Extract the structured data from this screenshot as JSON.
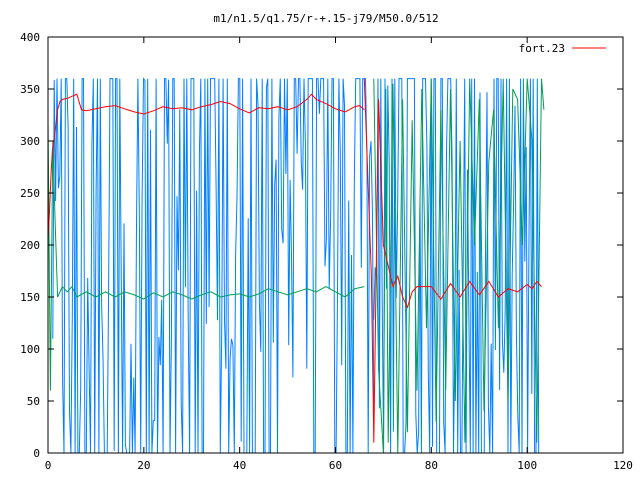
{
  "chart_data": {
    "type": "line",
    "title": "m1/n1.5/q1.75/r-+.15-j79/M50.0/512",
    "xlabel": "",
    "ylabel": "",
    "xlim": [
      0,
      120
    ],
    "ylim": [
      0,
      400
    ],
    "xticks": [
      0,
      20,
      40,
      60,
      80,
      100,
      120
    ],
    "yticks": [
      0,
      50,
      100,
      150,
      200,
      250,
      300,
      350,
      400
    ],
    "grid": false,
    "legend_position": "top-right",
    "series": [
      {
        "name": "fort.23",
        "color": "#ff0000",
        "points": [
          [
            0,
            205
          ],
          [
            0.3,
            230
          ],
          [
            0.6,
            265
          ],
          [
            0.9,
            290
          ],
          [
            1.2,
            300
          ],
          [
            1.5,
            310
          ],
          [
            2,
            330
          ],
          [
            2.5,
            338
          ],
          [
            3,
            340
          ],
          [
            4,
            341
          ],
          [
            5,
            343
          ],
          [
            6,
            345
          ],
          [
            7,
            330
          ],
          [
            8,
            329
          ],
          [
            10,
            331
          ],
          [
            12,
            333
          ],
          [
            14,
            334
          ],
          [
            16,
            331
          ],
          [
            18,
            328
          ],
          [
            20,
            326
          ],
          [
            22,
            329
          ],
          [
            24,
            333
          ],
          [
            26,
            331
          ],
          [
            28,
            332
          ],
          [
            30,
            330
          ],
          [
            32,
            333
          ],
          [
            34,
            335
          ],
          [
            36,
            338
          ],
          [
            38,
            336
          ],
          [
            40,
            331
          ],
          [
            42,
            327
          ],
          [
            44,
            332
          ],
          [
            46,
            331
          ],
          [
            48,
            333
          ],
          [
            50,
            330
          ],
          [
            52,
            333
          ],
          [
            54,
            340
          ],
          [
            55,
            345
          ],
          [
            56,
            340
          ],
          [
            58,
            336
          ],
          [
            60,
            331
          ],
          [
            62,
            328
          ],
          [
            64,
            333
          ],
          [
            65,
            334
          ],
          [
            66,
            330
          ]
        ]
      },
      {
        "name": "",
        "color": "#ff0000",
        "points": [
          [
            66,
            360
          ],
          [
            67.5,
            170
          ],
          [
            68,
            10
          ],
          [
            69,
            340
          ],
          [
            70,
            200
          ],
          [
            71,
            180
          ],
          [
            72,
            160
          ],
          [
            73,
            170
          ],
          [
            74,
            150
          ],
          [
            75,
            140
          ],
          [
            76,
            155
          ],
          [
            77,
            160
          ],
          [
            78,
            160
          ],
          [
            80,
            160
          ],
          [
            82,
            148
          ],
          [
            84,
            163
          ],
          [
            86,
            150
          ],
          [
            88,
            165
          ],
          [
            90,
            152
          ],
          [
            92,
            165
          ],
          [
            94,
            150
          ],
          [
            96,
            158
          ],
          [
            98,
            155
          ],
          [
            100,
            162
          ],
          [
            101,
            158
          ],
          [
            102,
            165
          ],
          [
            103,
            160
          ]
        ]
      },
      {
        "name": "",
        "color": "#00a050",
        "points": [
          [
            0,
            320
          ],
          [
            0.5,
            60
          ],
          [
            1,
            300
          ],
          [
            1.5,
            220
          ],
          [
            2,
            150
          ],
          [
            3,
            160
          ],
          [
            4,
            155
          ],
          [
            5,
            160
          ],
          [
            6,
            150
          ],
          [
            8,
            155
          ],
          [
            10,
            150
          ],
          [
            12,
            155
          ],
          [
            14,
            150
          ],
          [
            16,
            155
          ],
          [
            18,
            152
          ],
          [
            20,
            148
          ],
          [
            22,
            154
          ],
          [
            24,
            150
          ],
          [
            26,
            155
          ],
          [
            28,
            152
          ],
          [
            30,
            148
          ],
          [
            32,
            152
          ],
          [
            34,
            155
          ],
          [
            36,
            150
          ],
          [
            38,
            152
          ],
          [
            40,
            153
          ],
          [
            42,
            150
          ],
          [
            44,
            153
          ],
          [
            46,
            158
          ],
          [
            48,
            155
          ],
          [
            50,
            152
          ],
          [
            52,
            155
          ],
          [
            54,
            158
          ],
          [
            56,
            155
          ],
          [
            58,
            160
          ],
          [
            60,
            155
          ],
          [
            62,
            150
          ],
          [
            64,
            158
          ],
          [
            66,
            160
          ]
        ]
      },
      {
        "name": "",
        "color": "#00a050",
        "points": [
          [
            68,
            360
          ],
          [
            69,
            80
          ],
          [
            70,
            0
          ],
          [
            70.5,
            350
          ],
          [
            71,
            10
          ],
          [
            72,
            355
          ],
          [
            73,
            0
          ],
          [
            74,
            340
          ],
          [
            75,
            20
          ],
          [
            76,
            320
          ],
          [
            77,
            60
          ],
          [
            78,
            350
          ],
          [
            79,
            120
          ],
          [
            80,
            360
          ],
          [
            81,
            30
          ],
          [
            82,
            330
          ],
          [
            83,
            60
          ],
          [
            84,
            350
          ],
          [
            85,
            50
          ],
          [
            86,
            300
          ],
          [
            87,
            10
          ],
          [
            88,
            360
          ],
          [
            89,
            200
          ],
          [
            90,
            340
          ],
          [
            91,
            40
          ],
          [
            92,
            280
          ],
          [
            93,
            330
          ],
          [
            94,
            120
          ],
          [
            95,
            360
          ],
          [
            96,
            50
          ],
          [
            97,
            350
          ],
          [
            98,
            340
          ],
          [
            99,
            200
          ],
          [
            100,
            360
          ],
          [
            101,
            300
          ],
          [
            102,
            10
          ],
          [
            103,
            360
          ],
          [
            103.5,
            330
          ]
        ]
      }
    ],
    "blue_bands": [
      {
        "x": [
          1,
          68
        ],
        "y": [
          0,
          360
        ],
        "count": 230,
        "color": "#0080ff"
      },
      {
        "x": [
          68,
          103
        ],
        "y": [
          0,
          360
        ],
        "count": 120,
        "color": "#0080ff"
      }
    ]
  }
}
